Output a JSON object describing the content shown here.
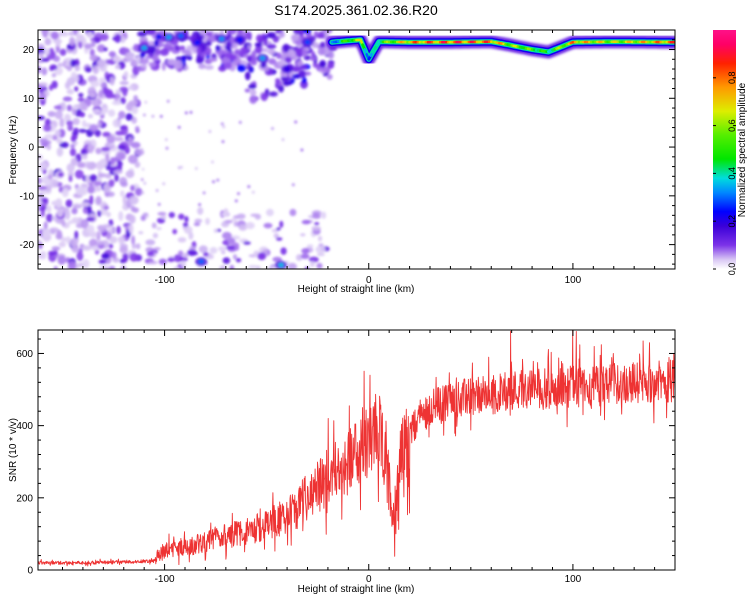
{
  "title": "S174.2025.361.02.36.R20",
  "chart_data": [
    {
      "type": "heatmap",
      "title": "S174.2025.361.02.36.R20",
      "xlabel": "Height of straight line (km)",
      "ylabel": "Frequency (Hz)",
      "xlim": [
        -162,
        150
      ],
      "ylim": [
        -25,
        24
      ],
      "xticks": [
        -100,
        0,
        100
      ],
      "yticks": [
        -20,
        -10,
        0,
        10,
        20
      ],
      "xtick_labels": [
        "-100",
        "0",
        "100"
      ],
      "ytick_labels": [
        "-20",
        "-10",
        "0",
        "10",
        "20"
      ],
      "colorbar": {
        "label": "Normalized spectral amplitude",
        "range": [
          0,
          1
        ],
        "ticks": [
          0.0,
          0.2,
          0.4,
          0.6,
          0.8
        ],
        "tick_labels": [
          "0.0",
          "0.2",
          "0.4",
          "0.6",
          "0.8"
        ]
      },
      "ridge": {
        "description_x": [
          -18,
          -10,
          -4,
          0,
          5,
          20,
          40,
          60,
          68,
          80,
          88,
          100,
          120,
          150
        ],
        "frequency_hz": [
          21.5,
          21.8,
          22.0,
          18.0,
          21.6,
          21.5,
          21.5,
          21.6,
          21.0,
          20.0,
          19.5,
          21.5,
          21.6,
          21.5
        ],
        "amplitude": [
          0.35,
          0.6,
          0.7,
          0.3,
          0.55,
          0.85,
          0.95,
          0.9,
          0.7,
          0.6,
          0.5,
          0.85,
          0.7,
          0.9
        ]
      }
    },
    {
      "type": "line",
      "xlabel": "Height of straight line (km)",
      "ylabel": "SNR (10 * v/v)",
      "xlim": [
        -162,
        150
      ],
      "ylim": [
        0,
        665
      ],
      "xticks": [
        -100,
        0,
        100
      ],
      "yticks": [
        0,
        200,
        400,
        600
      ],
      "xtick_labels": [
        "-100",
        "0",
        "100"
      ],
      "ytick_labels": [
        "0",
        "200",
        "400",
        "600"
      ],
      "series": [
        {
          "name": "SNR",
          "color": "#ee3333",
          "x": [
            -162,
            -140,
            -120,
            -105,
            -100,
            -90,
            -80,
            -70,
            -60,
            -50,
            -40,
            -30,
            -25,
            -20,
            -15,
            -10,
            -5,
            0,
            5,
            10,
            12,
            15,
            20,
            25,
            30,
            40,
            50,
            60,
            70,
            80,
            90,
            100,
            110,
            120,
            130,
            140,
            150
          ],
          "y": [
            20,
            20,
            22,
            25,
            55,
            60,
            80,
            95,
            105,
            125,
            150,
            190,
            230,
            260,
            280,
            300,
            330,
            370,
            380,
            250,
            140,
            300,
            380,
            420,
            450,
            470,
            480,
            485,
            500,
            505,
            500,
            510,
            510,
            515,
            520,
            520,
            525
          ]
        }
      ]
    }
  ]
}
